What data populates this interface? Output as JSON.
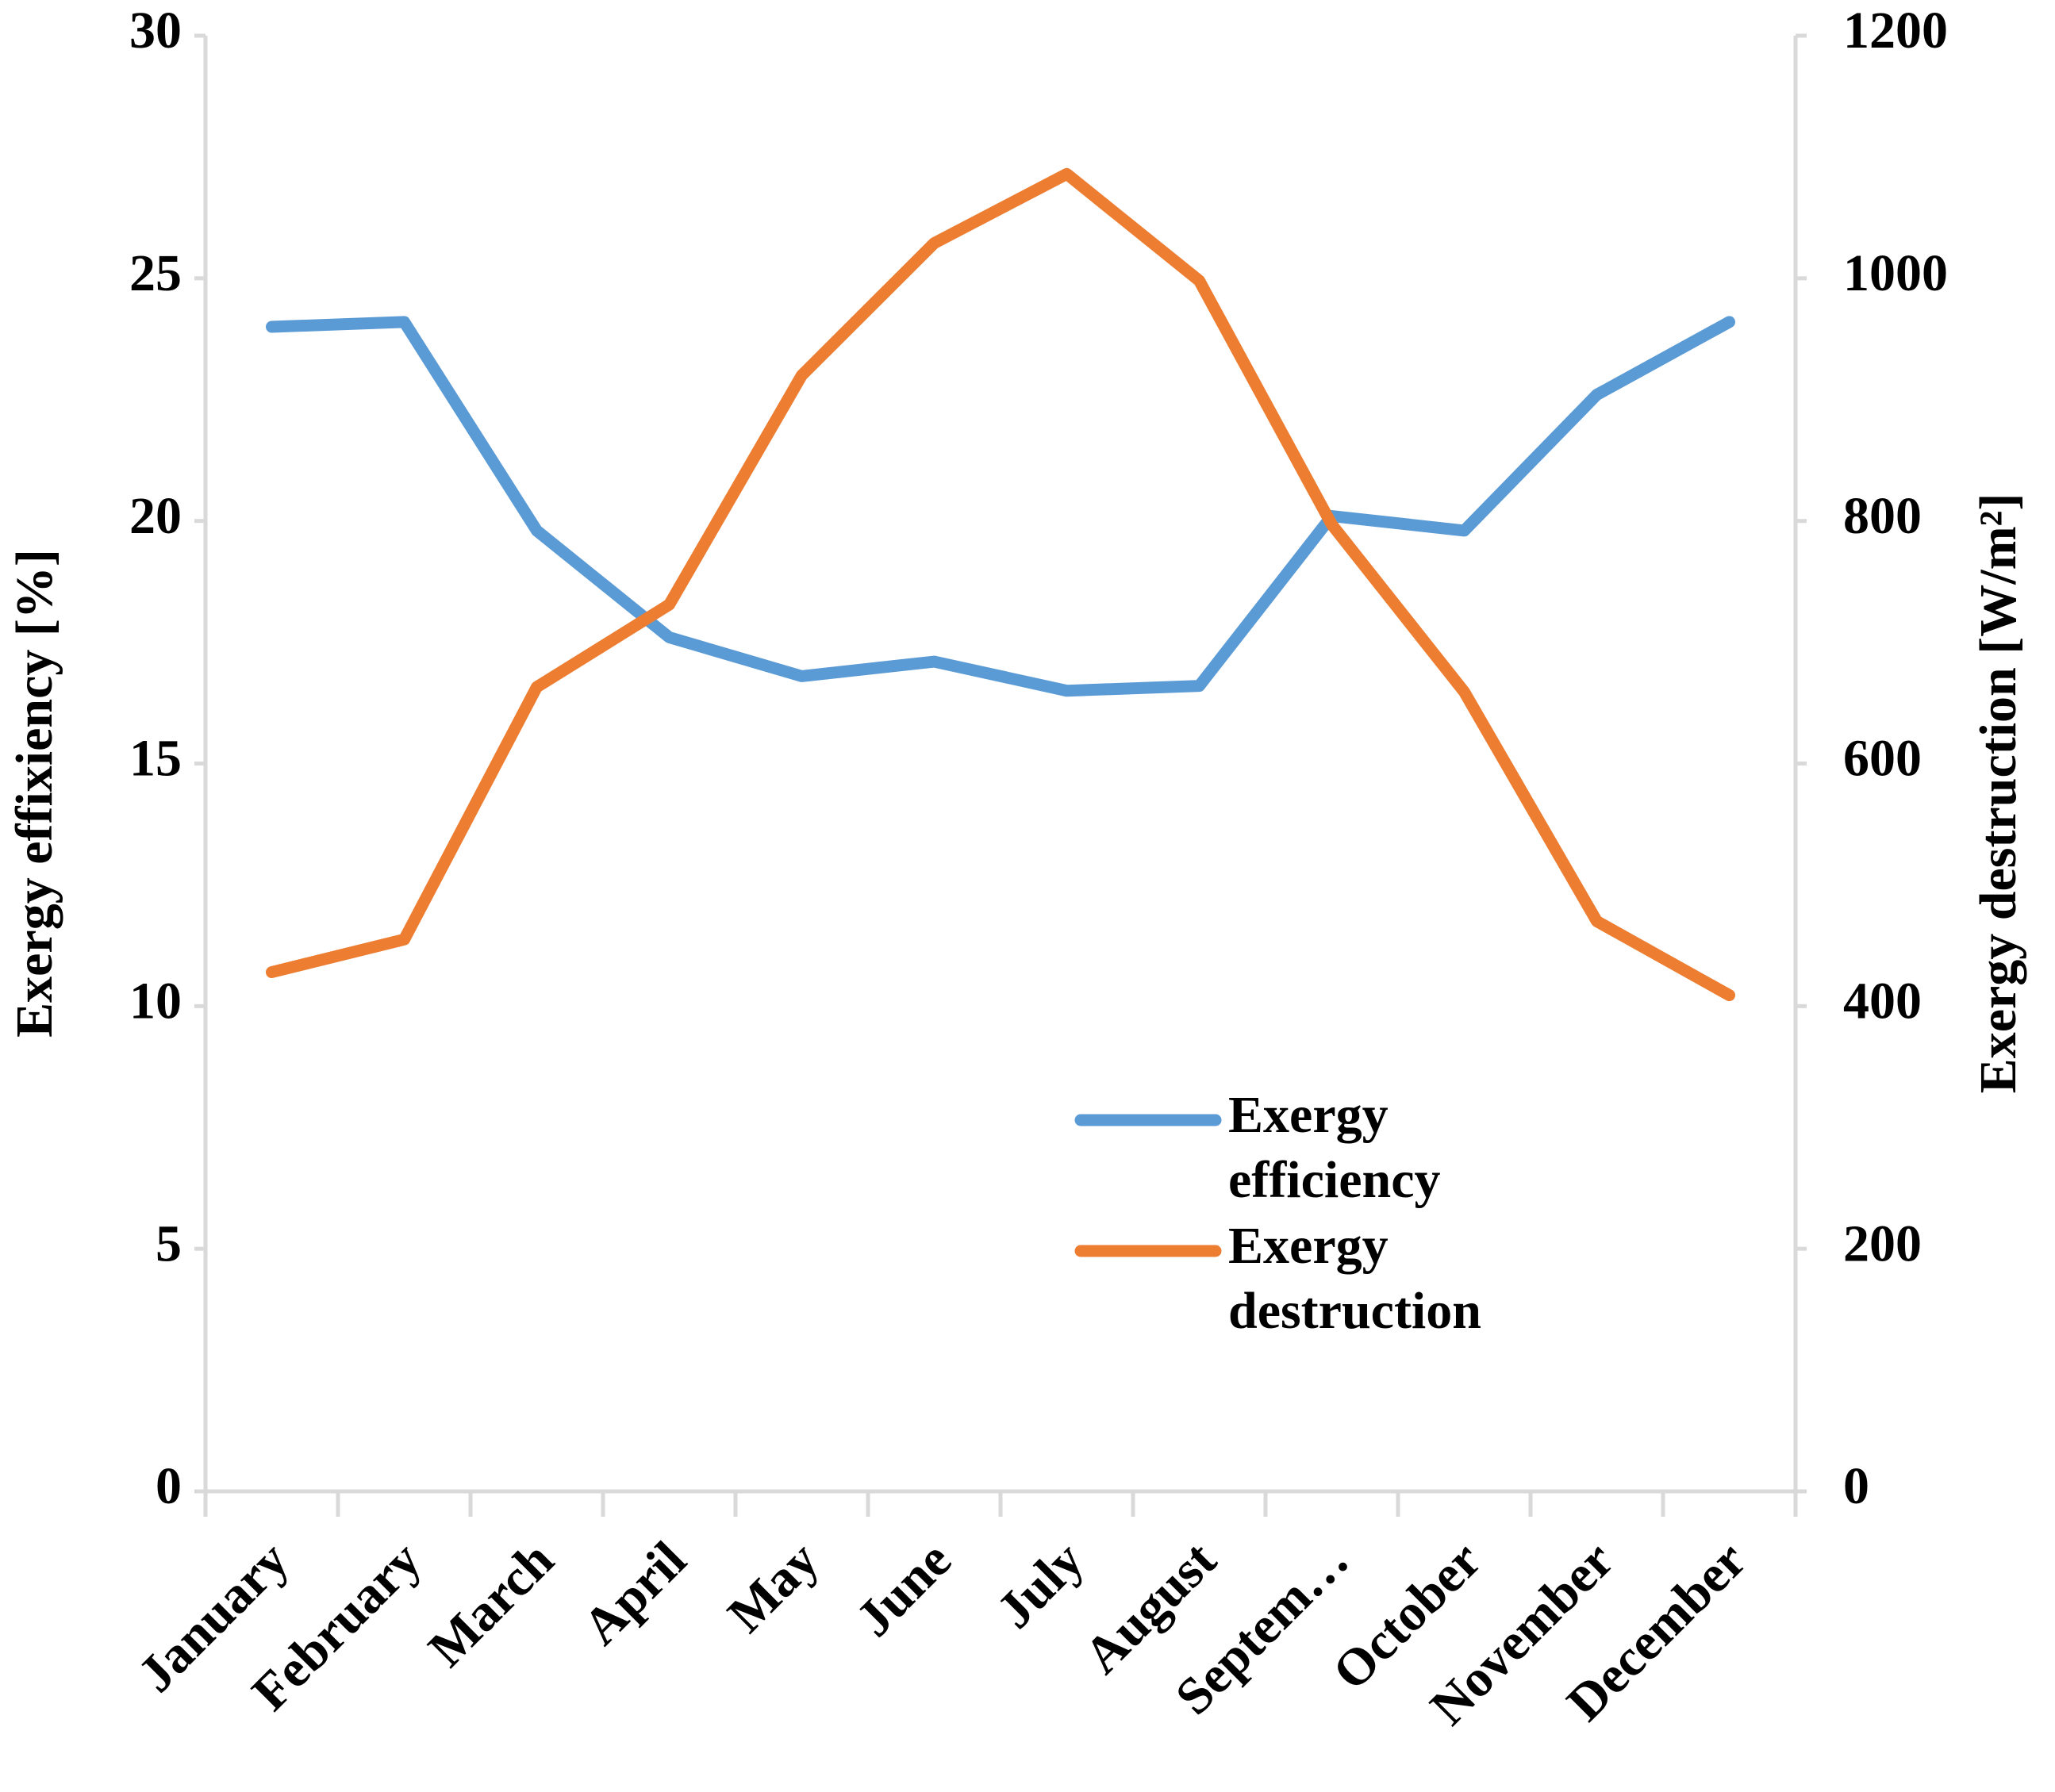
{
  "chart_data": {
    "type": "line",
    "categories": [
      "January",
      "February",
      "March",
      "April",
      "May",
      "June",
      "July",
      "August",
      "Septem…",
      "October",
      "November",
      "December"
    ],
    "series": [
      {
        "name": "Exergy efficiency",
        "color": "#5b9bd5",
        "values": [
          24.0,
          24.1,
          19.8,
          17.6,
          16.8,
          17.1,
          16.5,
          16.6,
          20.1,
          19.8,
          22.6,
          24.1
        ]
      },
      {
        "name": "Exergy destruction",
        "color": "#ed7d31",
        "axis": "y2",
        "values": [
          428,
          455,
          663,
          731,
          920,
          1029,
          1086,
          998,
          797,
          659,
          470,
          409
        ]
      }
    ],
    "ylabel": "Exergy effixiency [%]",
    "y2label": "Exergy destruction [W/m²]",
    "ylim": [
      0,
      30
    ],
    "yticks": [
      0,
      5,
      10,
      15,
      20,
      25,
      30
    ],
    "y2lim": [
      0,
      1200
    ],
    "y2ticks": [
      0,
      200,
      400,
      600,
      800,
      1000,
      1200
    ],
    "grid": false,
    "legend": "lower-right"
  }
}
